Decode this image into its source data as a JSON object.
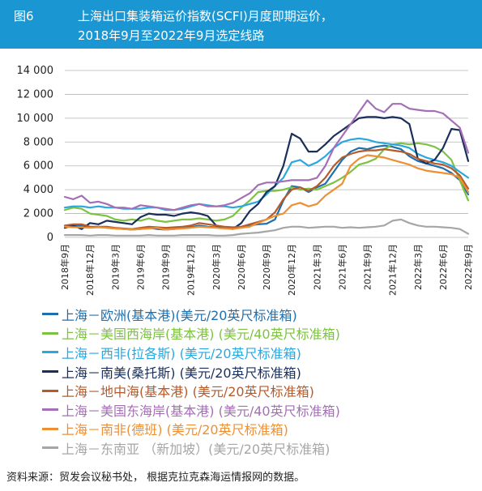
{
  "header": {
    "figure_label": "图6",
    "title_line1": "上海出口集装箱运价指数(SCFI)月度即期运价，",
    "title_line2": "2018年9月至2022年9月选定线路"
  },
  "source_note": "资料来源：贸发会议秘书处， 根据克拉克森海运情报网的数据。",
  "chart_data": {
    "type": "line",
    "title": "",
    "xlabel": "",
    "ylabel": "",
    "ylim": [
      0,
      14000
    ],
    "y_ticks": [
      0,
      2000,
      4000,
      6000,
      8000,
      10000,
      12000,
      14000
    ],
    "y_tick_labels": [
      "0",
      "2 000",
      "4 000",
      "6 000",
      "8 000",
      "10 000",
      "12 000",
      "14 000"
    ],
    "x": [
      "2018年9月",
      "2018年10月",
      "2018年11月",
      "2018年12月",
      "2019年1月",
      "2019年2月",
      "2019年3月",
      "2019年4月",
      "2019年5月",
      "2019年6月",
      "2019年7月",
      "2019年8月",
      "2019年9月",
      "2019年10月",
      "2019年11月",
      "2019年12月",
      "2020年1月",
      "2020年2月",
      "2020年3月",
      "2020年4月",
      "2020年5月",
      "2020年6月",
      "2020年7月",
      "2020年8月",
      "2020年9月",
      "2020年10月",
      "2020年11月",
      "2020年12月",
      "2021年1月",
      "2021年2月",
      "2021年3月",
      "2021年4月",
      "2021年5月",
      "2021年6月",
      "2021年7月",
      "2021年8月",
      "2021年9月",
      "2021年10月",
      "2021年11月",
      "2021年12月",
      "2022年1月",
      "2022年2月",
      "2022年3月",
      "2022年4月",
      "2022年5月",
      "2022年6月",
      "2022年7月",
      "2022年8月",
      "2022年9月"
    ],
    "x_tick_labels": [
      "2018年9月",
      "2018年12月",
      "2019年3月",
      "2019年6月",
      "2019年9月",
      "2019年12月",
      "2020年3月",
      "2020年6月",
      "2020年9月",
      "2020年12月",
      "2021年3月",
      "2021年6月",
      "2021年9月",
      "2021年12月",
      "2022年3月",
      "2022年6月",
      "2022年9月"
    ],
    "grid": true,
    "legend_position": "bottom",
    "series": [
      {
        "name": "上海－欧洲(基本港)(美元/20英尺标准箱)",
        "color": "#1f6fae",
        "values": [
          900,
          950,
          1000,
          850,
          900,
          800,
          750,
          700,
          650,
          700,
          800,
          700,
          650,
          700,
          800,
          850,
          1000,
          900,
          850,
          800,
          750,
          900,
          1000,
          1100,
          1150,
          1500,
          3100,
          4300,
          4200,
          3800,
          4200,
          4500,
          5500,
          6500,
          7200,
          7500,
          7400,
          7600,
          7700,
          7600,
          7400,
          6800,
          6400,
          6200,
          6000,
          5800,
          5400,
          4800,
          3600
        ]
      },
      {
        "name": "上海－美国西海岸(基本港) (美元/40英尺标准箱)",
        "color": "#7dc242",
        "values": [
          2300,
          2500,
          2400,
          2000,
          1900,
          1800,
          1500,
          1400,
          1500,
          1400,
          1600,
          1400,
          1300,
          1400,
          1500,
          1500,
          1600,
          1500,
          1400,
          1500,
          1800,
          2500,
          3100,
          3800,
          3900,
          3900,
          4000,
          4200,
          4000,
          4100,
          4000,
          4300,
          4600,
          5000,
          5500,
          6100,
          6300,
          6600,
          7400,
          7800,
          7900,
          7800,
          7900,
          7800,
          7600,
          7200,
          6500,
          4800,
          3100
        ]
      },
      {
        "name": "上海－西非(拉各斯) (美元/20英尺标准箱)",
        "color": "#29a8e0",
        "values": [
          2500,
          2600,
          2600,
          2500,
          2600,
          2500,
          2500,
          2400,
          2400,
          2400,
          2500,
          2500,
          2300,
          2300,
          2400,
          2600,
          2800,
          2700,
          2600,
          2600,
          2500,
          2600,
          2800,
          3000,
          3600,
          4300,
          5000,
          6300,
          6500,
          6000,
          6300,
          6800,
          7500,
          8000,
          8200,
          8300,
          8200,
          8000,
          7900,
          7800,
          7700,
          7500,
          7000,
          6700,
          6500,
          6300,
          6000,
          5500,
          5000
        ]
      },
      {
        "name": "上海－南美(桑托斯) (美元/20英尺标准箱)",
        "color": "#1b2f5c",
        "values": [
          800,
          1000,
          700,
          1200,
          1100,
          1400,
          1300,
          1200,
          1100,
          1700,
          2000,
          1900,
          1900,
          1800,
          2000,
          2100,
          2000,
          1800,
          1000,
          800,
          700,
          1200,
          2200,
          2800,
          3800,
          4300,
          6000,
          8700,
          8300,
          7200,
          7200,
          7800,
          8500,
          9000,
          9500,
          10000,
          10100,
          10100,
          10000,
          10100,
          10000,
          9500,
          6600,
          6200,
          6500,
          7500,
          9100,
          9000,
          6400
        ]
      },
      {
        "name": "上海－地中海(基本港) (美元/20英尺标准箱)",
        "color": "#b75a2a",
        "values": [
          1000,
          1100,
          1100,
          900,
          900,
          900,
          800,
          750,
          700,
          800,
          900,
          850,
          800,
          850,
          900,
          1000,
          1200,
          1100,
          1000,
          900,
          850,
          900,
          1100,
          1300,
          1500,
          2100,
          3200,
          4000,
          4200,
          3900,
          4300,
          5000,
          6000,
          6700,
          7000,
          7200,
          7300,
          7300,
          7400,
          7300,
          7200,
          7000,
          6600,
          6400,
          6200,
          6100,
          5800,
          5200,
          4100
        ]
      },
      {
        "name": "上海－美国东海岸(基本港) (美元/40英尺标准箱)",
        "color": "#a46fb7",
        "values": [
          3400,
          3200,
          3500,
          2900,
          3000,
          2800,
          2500,
          2500,
          2400,
          2700,
          2600,
          2500,
          2400,
          2300,
          2500,
          2700,
          2800,
          2600,
          2600,
          2700,
          2900,
          3300,
          3700,
          4400,
          4600,
          4600,
          4700,
          4800,
          4800,
          4800,
          5000,
          6000,
          7500,
          8500,
          9500,
          10500,
          11500,
          10800,
          10500,
          11200,
          11200,
          10800,
          10700,
          10600,
          10600,
          10400,
          9800,
          9200,
          7100
        ]
      },
      {
        "name": "上海－南非(德班) (美元/20英尺标准箱)",
        "color": "#ee8f33",
        "values": [
          900,
          850,
          850,
          800,
          850,
          800,
          750,
          700,
          650,
          700,
          750,
          800,
          650,
          700,
          750,
          800,
          900,
          850,
          800,
          750,
          700,
          800,
          900,
          1200,
          1500,
          1800,
          2000,
          2700,
          2900,
          2600,
          2800,
          3500,
          4000,
          4500,
          6000,
          6600,
          6900,
          6800,
          6700,
          6500,
          6300,
          6100,
          5800,
          5600,
          5500,
          5400,
          5300,
          5000,
          3800
        ]
      },
      {
        "name": "上海－东南亚 （新加坡）(美元/20英尺标准箱)",
        "color": "#a6a6a6",
        "values": [
          200,
          200,
          200,
          150,
          200,
          200,
          150,
          150,
          150,
          150,
          200,
          150,
          150,
          150,
          200,
          200,
          200,
          200,
          150,
          150,
          200,
          300,
          350,
          400,
          500,
          600,
          800,
          900,
          900,
          800,
          850,
          900,
          900,
          800,
          850,
          800,
          850,
          900,
          1000,
          1400,
          1500,
          1200,
          1000,
          900,
          900,
          850,
          800,
          700,
          300
        ]
      }
    ]
  }
}
